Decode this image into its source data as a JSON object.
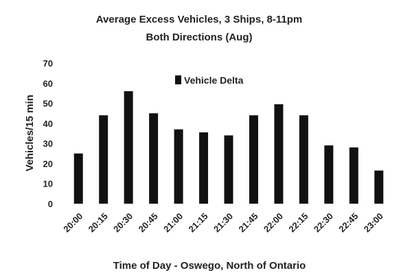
{
  "chart_data": {
    "type": "bar",
    "title": "Average Excess Vehicles, 3 Ships, 8-11pm",
    "subtitle": "Both Directions (Aug)",
    "xlabel": "Time of Day - Oswego, North of Ontario",
    "ylabel": "Vehicles/15 min",
    "ylim": [
      0,
      70
    ],
    "yticks": [
      0,
      10,
      20,
      30,
      40,
      50,
      60,
      70
    ],
    "grid": false,
    "legend_position": "top-center",
    "categories": [
      "20:00",
      "20:15",
      "20:30",
      "20:45",
      "21:00",
      "21:15",
      "21:30",
      "21:45",
      "22:00",
      "22:15",
      "22:30",
      "22:45",
      "23:00"
    ],
    "series": [
      {
        "name": "Vehicle Delta",
        "color": "#111111",
        "values": [
          25,
          44,
          56,
          45,
          37,
          35.5,
          34,
          44,
          49.5,
          44,
          29,
          28,
          16.5
        ]
      }
    ]
  }
}
